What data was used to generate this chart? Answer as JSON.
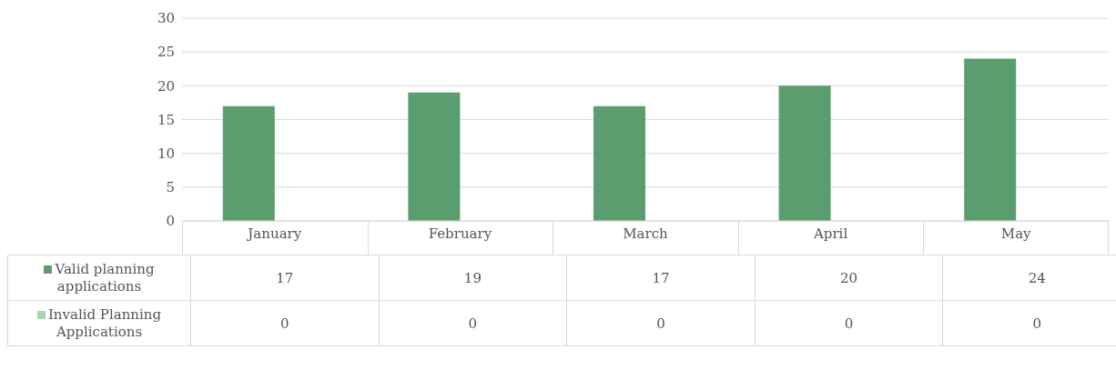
{
  "chart_data": {
    "type": "bar",
    "categories": [
      "January",
      "February",
      "March",
      "April",
      "May"
    ],
    "series": [
      {
        "name": "Valid planning applications",
        "color": "#5a9e6f",
        "values": [
          17,
          19,
          17,
          20,
          24
        ]
      },
      {
        "name": "Invalid Planning Applications",
        "color": "#a9d3b0",
        "values": [
          0,
          0,
          0,
          0,
          0
        ]
      }
    ],
    "ylim": [
      0,
      30
    ],
    "yticks": [
      0,
      5,
      10,
      15,
      20,
      25,
      30
    ],
    "grid": "y",
    "legend": "bottom",
    "data_labels": true
  }
}
